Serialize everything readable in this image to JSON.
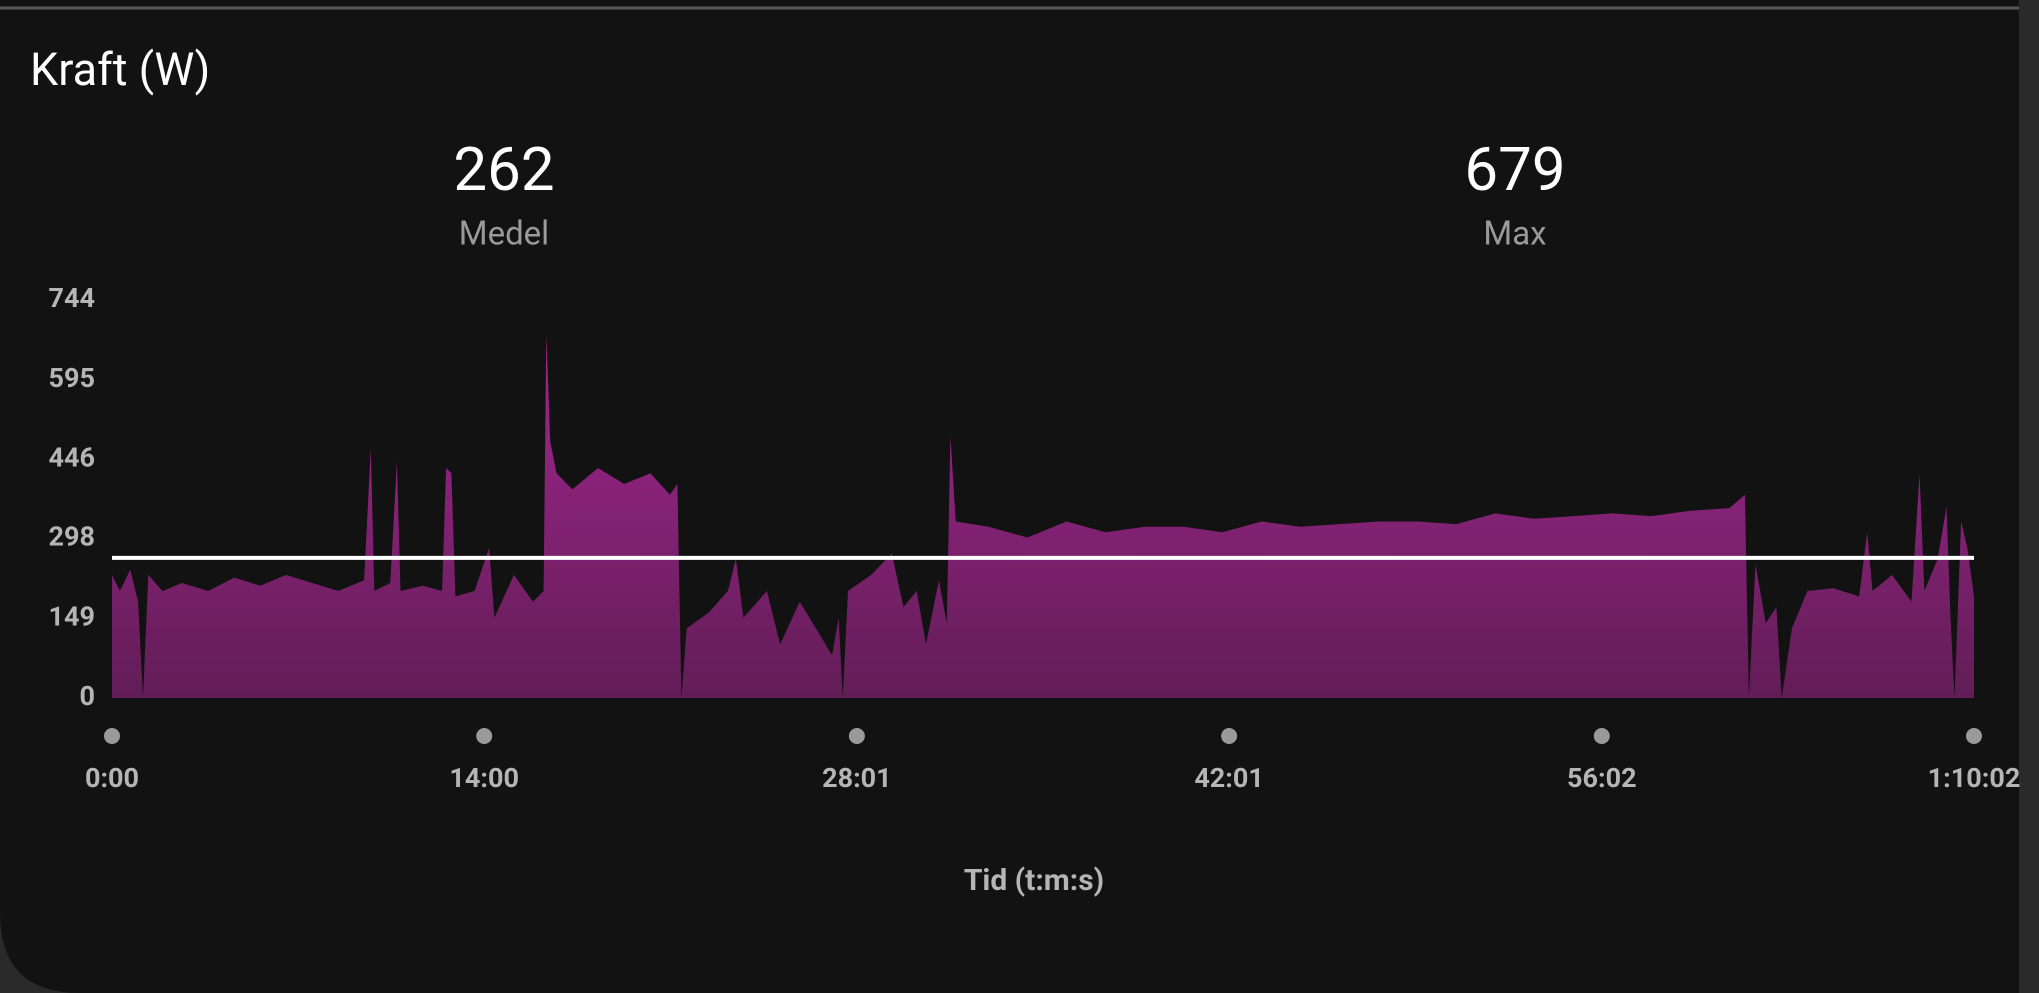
{
  "chart_data": {
    "type": "area",
    "title": "Kraft (W)",
    "stats": [
      {
        "value": 262,
        "label": "Medel"
      },
      {
        "value": 679,
        "label": "Max"
      }
    ],
    "x_label": "Tid (t:m:s)",
    "color": "#a3268f",
    "reference_color": "#ffffff",
    "x": [
      0,
      18,
      41,
      59,
      70,
      82,
      114,
      158,
      217,
      276,
      334,
      393,
      452,
      511,
      569,
      584,
      592,
      628,
      643,
      651,
      701,
      745,
      754,
      766,
      775,
      818,
      851,
      863,
      907,
      950,
      974,
      980,
      989,
      1003,
      1039,
      1097,
      1156,
      1215,
      1259,
      1276,
      1285,
      1297,
      1347,
      1390,
      1408,
      1425,
      1478,
      1508,
      1552,
      1596,
      1625,
      1640,
      1649,
      1661,
      1713,
      1760,
      1786,
      1816,
      1837,
      1866,
      1884,
      1892,
      1904,
      1978,
      2066,
      2154,
      2242,
      2330,
      2418,
      2506,
      2594,
      2682,
      2770,
      2858,
      2946,
      3034,
      3122,
      3210,
      3298,
      3386,
      3474,
      3562,
      3650,
      3685,
      3694,
      3709,
      3732,
      3756,
      3768,
      3791,
      3826,
      3885,
      3943,
      3961,
      3973,
      4017,
      4061,
      4079,
      4090,
      4120,
      4140,
      4149,
      4158,
      4173,
      4187,
      4202
    ],
    "values": [
      230,
      200,
      240,
      180,
      0,
      230,
      200,
      215,
      200,
      225,
      210,
      230,
      215,
      200,
      220,
      467,
      200,
      215,
      442,
      200,
      210,
      200,
      430,
      420,
      190,
      200,
      280,
      150,
      230,
      180,
      200,
      679,
      480,
      420,
      390,
      430,
      400,
      420,
      380,
      400,
      0,
      130,
      160,
      200,
      260,
      150,
      200,
      100,
      180,
      120,
      80,
      150,
      0,
      200,
      230,
      270,
      170,
      200,
      100,
      220,
      140,
      490,
      330,
      320,
      300,
      330,
      310,
      320,
      320,
      310,
      330,
      320,
      325,
      330,
      330,
      325,
      345,
      335,
      340,
      345,
      340,
      350,
      355,
      380,
      0,
      250,
      140,
      170,
      0,
      130,
      200,
      205,
      190,
      310,
      200,
      230,
      180,
      418,
      200,
      260,
      357,
      150,
      0,
      330,
      280,
      190
    ],
    "xlim": [
      0,
      4202
    ],
    "xticks": [
      {
        "value": 0,
        "label": "0:00"
      },
      {
        "value": 840,
        "label": "14:00"
      },
      {
        "value": 1681,
        "label": "28:01"
      },
      {
        "value": 2521,
        "label": "42:01"
      },
      {
        "value": 3362,
        "label": "56:02"
      },
      {
        "value": 4202,
        "label": "1:10:02"
      }
    ],
    "ylim": [
      0,
      744
    ],
    "yticks": [
      0,
      149,
      298,
      446,
      595,
      744
    ]
  }
}
